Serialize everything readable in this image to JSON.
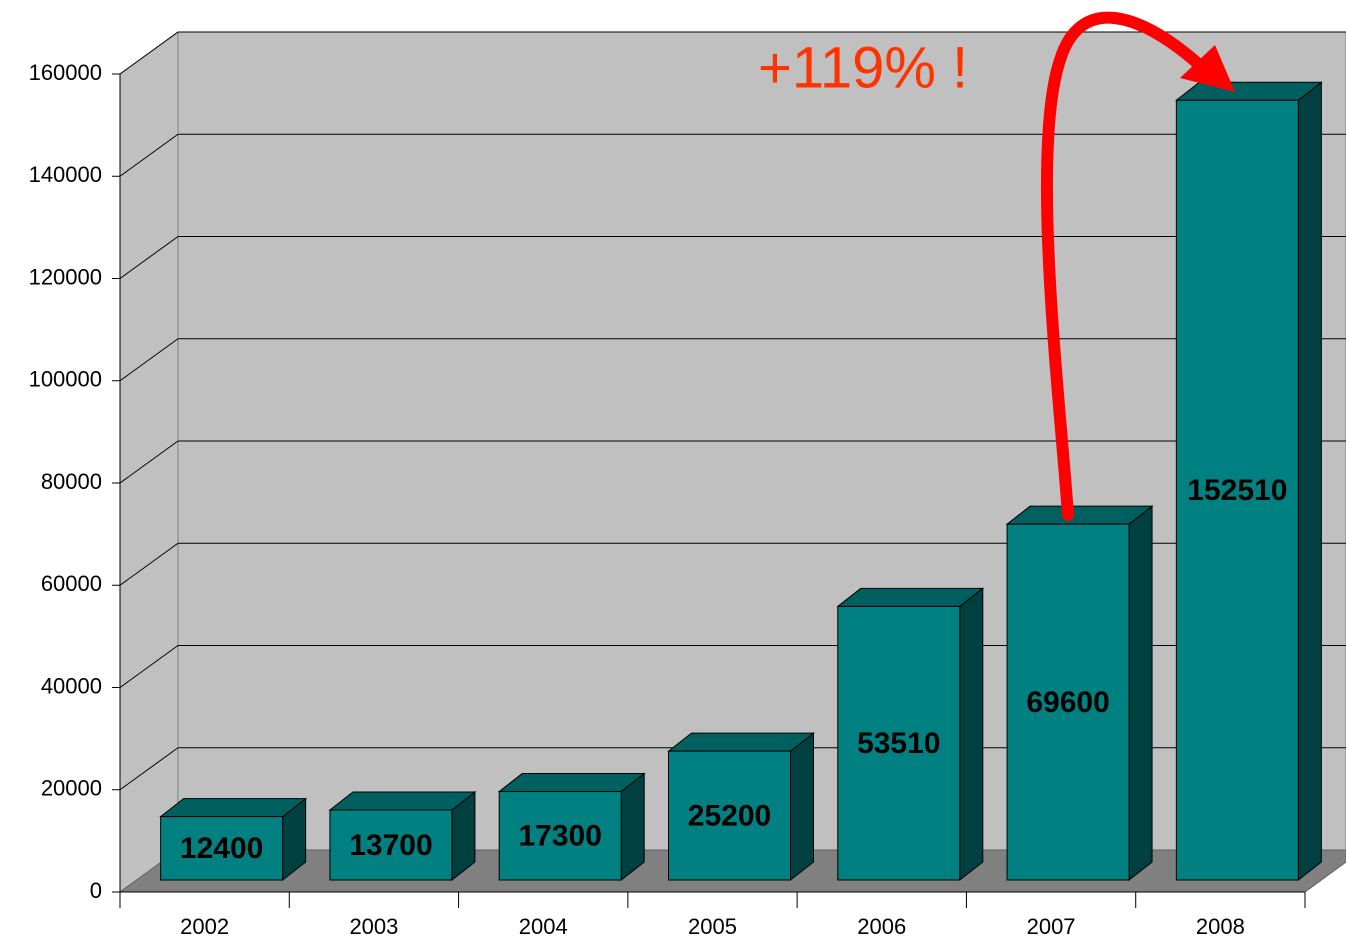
{
  "chart_data": {
    "type": "bar3d",
    "categories": [
      "2002",
      "2003",
      "2004",
      "2005",
      "2006",
      "2007",
      "2008"
    ],
    "values": [
      12400,
      13700,
      17300,
      25200,
      53510,
      69600,
      152510
    ],
    "color": "#008080",
    "ylim": [
      0,
      160000
    ],
    "yticks": [
      0,
      20000,
      40000,
      60000,
      80000,
      100000,
      120000,
      140000,
      160000
    ],
    "grid": true,
    "annotation": "+119% !"
  }
}
